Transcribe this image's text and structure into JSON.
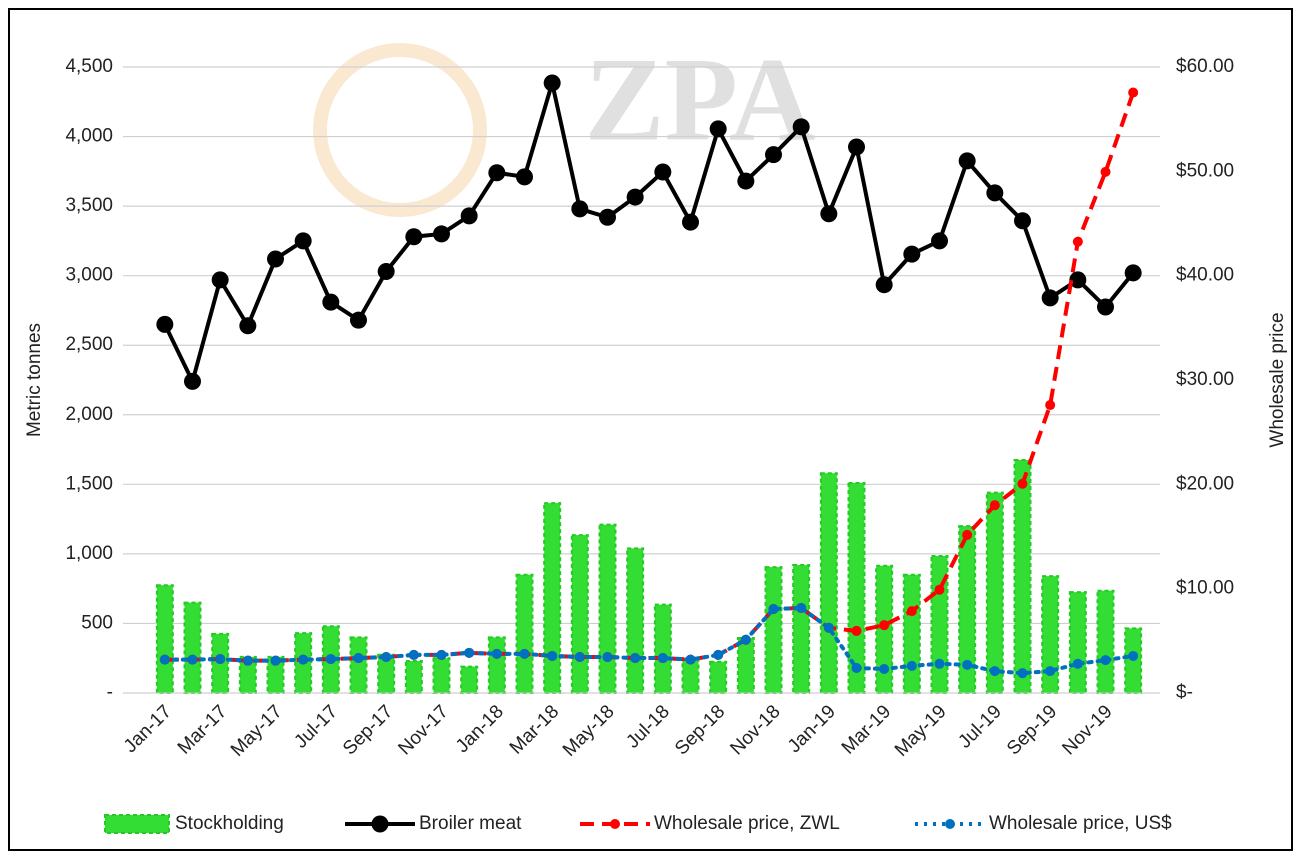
{
  "chart_data": {
    "type": "combo",
    "watermark": "ZPA",
    "y_label": "Metric tonnes",
    "y2_label": "Wholesale price",
    "categories": [
      "Jan-17",
      null,
      "Mar-17",
      null,
      "May-17",
      null,
      "Jul-17",
      null,
      "Sep-17",
      null,
      "Nov-17",
      null,
      "Jan-18",
      null,
      "Mar-18",
      null,
      "May-18",
      null,
      "Jul-18",
      null,
      "Sep-18",
      null,
      "Nov-18",
      null,
      "Jan-19",
      null,
      "Mar-19",
      null,
      "May-19",
      null,
      "Jul-19",
      null,
      "Sep-19",
      null,
      "Nov-19",
      null
    ],
    "ylim": [
      0,
      4500
    ],
    "yticks": [
      {
        "value": 0,
        "label": "-"
      },
      500,
      {
        "value": 1000,
        "label": "1,000"
      },
      {
        "value": 1500,
        "label": "1,500"
      },
      {
        "value": 2000,
        "label": "2,000"
      },
      {
        "value": 2500,
        "label": "2,500"
      },
      {
        "value": 3000,
        "label": "3,000"
      },
      {
        "value": 3500,
        "label": "3,500"
      },
      {
        "value": 4000,
        "label": "4,000"
      },
      {
        "value": 4500,
        "label": "4,500"
      }
    ],
    "y2lim": [
      0,
      60
    ],
    "y2ticks": [
      {
        "value": 0,
        "label": "$-"
      },
      {
        "value": 10,
        "label": "$10.00"
      },
      {
        "value": 20,
        "label": "$20.00"
      },
      {
        "value": 30,
        "label": "$30.00"
      },
      {
        "value": 40,
        "label": "$40.00"
      },
      {
        "value": 50,
        "label": "$50.00"
      },
      {
        "value": 60,
        "label": "$60.00"
      }
    ],
    "grid": true,
    "legend": "bottom",
    "series": [
      {
        "name": "Stockholding",
        "type": "bar",
        "color": "#33dd33",
        "values": [
          775,
          650,
          425,
          260,
          260,
          430,
          480,
          400,
          275,
          230,
          250,
          190,
          400,
          850,
          1365,
          1135,
          1210,
          1040,
          635,
          240,
          225,
          395,
          905,
          920,
          1580,
          1510,
          915,
          850,
          985,
          1200,
          1440,
          1675,
          840,
          725,
          735,
          465
        ]
      },
      {
        "name": "Broiler meat",
        "type": "line",
        "color": "#000000",
        "dash": "solid",
        "values": [
          2650,
          2240,
          2970,
          2640,
          3120,
          3250,
          2810,
          2680,
          3030,
          3280,
          3300,
          3430,
          3740,
          3710,
          4385,
          3480,
          3420,
          3565,
          3745,
          3385,
          4055,
          3680,
          3870,
          4070,
          3445,
          3925,
          2935,
          3155,
          3250,
          3825,
          3595,
          3395,
          2840,
          2970,
          2775,
          3020
        ]
      },
      {
        "name": "Wholesale price, ZWL",
        "type": "line",
        "axis": "y2",
        "color": "#ff0000",
        "dash": "dashed",
        "values": [
          3.2,
          3.2,
          3.25,
          3.1,
          3.1,
          3.2,
          3.25,
          3.35,
          3.45,
          3.65,
          3.65,
          3.85,
          3.75,
          3.75,
          3.55,
          3.45,
          3.45,
          3.35,
          3.35,
          3.2,
          3.65,
          5.1,
          8.05,
          8.15,
          6.25,
          5.95,
          6.5,
          7.85,
          9.9,
          15.15,
          18.0,
          20.05,
          27.6,
          43.25,
          49.95,
          57.55
        ]
      },
      {
        "name": "Wholesale price, US$",
        "type": "line",
        "axis": "y2",
        "color": "#0070c0",
        "dash": "dotted",
        "values": [
          3.2,
          3.2,
          3.25,
          3.1,
          3.1,
          3.2,
          3.25,
          3.35,
          3.45,
          3.65,
          3.65,
          3.85,
          3.75,
          3.75,
          3.55,
          3.45,
          3.45,
          3.35,
          3.35,
          3.2,
          3.65,
          5.1,
          8.05,
          8.15,
          6.25,
          2.4,
          2.3,
          2.6,
          2.8,
          2.7,
          2.1,
          1.9,
          2.1,
          2.8,
          3.15,
          3.55
        ]
      }
    ]
  }
}
